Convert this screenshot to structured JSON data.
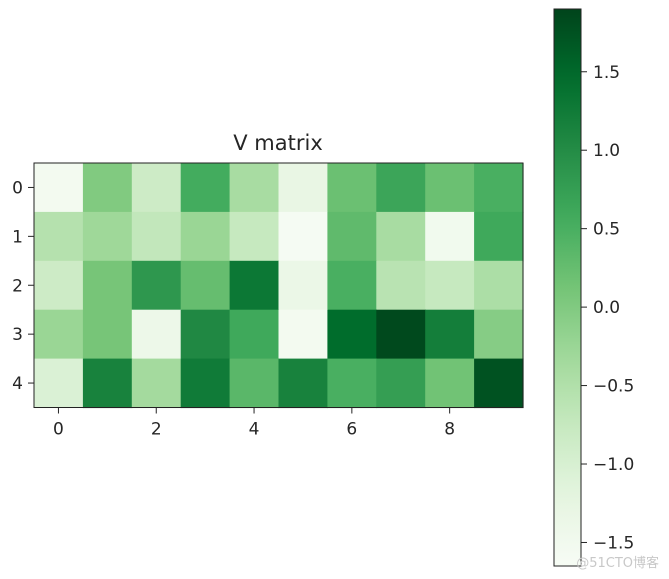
{
  "chart_data": {
    "type": "heatmap",
    "title": "V matrix",
    "colormap": "Greens",
    "x_ticks": [
      "0",
      "2",
      "4",
      "6",
      "8"
    ],
    "y_ticks": [
      "0",
      "1",
      "2",
      "3",
      "4"
    ],
    "colorbar_ticks": [
      "1.5",
      "1.0",
      "0.5",
      "0.0",
      "−0.5",
      "−1.0",
      "−1.5"
    ],
    "colorbar_tick_values": [
      1.5,
      1.0,
      0.5,
      0.0,
      -0.5,
      -1.0,
      -1.5
    ],
    "vmin": -1.65,
    "vmax": 1.9,
    "values": [
      [
        -1.55,
        0.0,
        -0.85,
        0.55,
        -0.4,
        -1.3,
        0.2,
        0.65,
        0.2,
        0.5
      ],
      [
        -0.55,
        -0.3,
        -0.7,
        -0.25,
        -0.75,
        -1.6,
        0.3,
        -0.4,
        -1.5,
        0.6
      ],
      [
        -0.85,
        0.1,
        0.85,
        0.25,
        1.3,
        -1.35,
        0.5,
        -0.6,
        -0.75,
        -0.45
      ],
      [
        -0.25,
        0.1,
        -1.4,
        1.05,
        0.6,
        -1.55,
        1.45,
        1.85,
        1.2,
        -0.05
      ],
      [
        -1.05,
        1.15,
        -0.35,
        1.25,
        0.35,
        1.15,
        0.5,
        0.75,
        0.15,
        1.75
      ]
    ]
  },
  "watermark": "@51CTO博客"
}
